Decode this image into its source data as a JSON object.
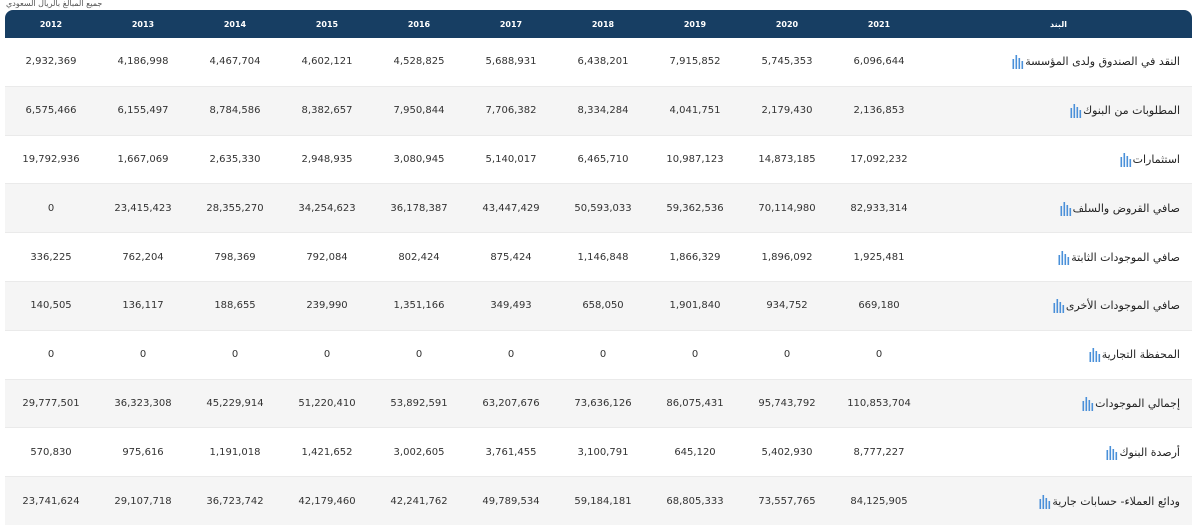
{
  "caption": "جميع المبالغ بالريال السعودي",
  "table": {
    "headers": [
      "2012",
      "2013",
      "2014",
      "2015",
      "2016",
      "2017",
      "2018",
      "2019",
      "2020",
      "2021",
      "البند"
    ],
    "rows": [
      {
        "label": "النقد في الصندوق ولدى المؤسسة",
        "values": [
          "2,932,369",
          "4,186,998",
          "4,467,704",
          "4,602,121",
          "4,528,825",
          "5,688,931",
          "6,438,201",
          "7,915,852",
          "5,745,353",
          "6,096,644"
        ]
      },
      {
        "label": "المطلوبات من البنوك",
        "values": [
          "6,575,466",
          "6,155,497",
          "8,784,586",
          "8,382,657",
          "7,950,844",
          "7,706,382",
          "8,334,284",
          "4,041,751",
          "2,179,430",
          "2,136,853"
        ]
      },
      {
        "label": "استثمارات",
        "values": [
          "19,792,936",
          "1,667,069",
          "2,635,330",
          "2,948,935",
          "3,080,945",
          "5,140,017",
          "6,465,710",
          "10,987,123",
          "14,873,185",
          "17,092,232"
        ]
      },
      {
        "label": "صافي القروض والسلف",
        "values": [
          "0",
          "23,415,423",
          "28,355,270",
          "34,254,623",
          "36,178,387",
          "43,447,429",
          "50,593,033",
          "59,362,536",
          "70,114,980",
          "82,933,314"
        ]
      },
      {
        "label": "صافي الموجودات الثابتة",
        "values": [
          "336,225",
          "762,204",
          "798,369",
          "792,084",
          "802,424",
          "875,424",
          "1,146,848",
          "1,866,329",
          "1,896,092",
          "1,925,481"
        ]
      },
      {
        "label": "صافي الموجودات الأخرى",
        "values": [
          "140,505",
          "136,117",
          "188,655",
          "239,990",
          "1,351,166",
          "349,493",
          "658,050",
          "1,901,840",
          "934,752",
          "669,180"
        ]
      },
      {
        "label": "المحفظة التجارية",
        "values": [
          "0",
          "0",
          "0",
          "0",
          "0",
          "0",
          "0",
          "0",
          "0",
          "0"
        ]
      },
      {
        "label": "إجمالي الموجودات",
        "values": [
          "29,777,501",
          "36,323,308",
          "45,229,914",
          "51,220,410",
          "53,892,591",
          "63,207,676",
          "73,636,126",
          "86,075,431",
          "95,743,792",
          "110,853,704"
        ]
      },
      {
        "label": "أرصدة البنوك",
        "values": [
          "570,830",
          "975,616",
          "1,191,018",
          "1,421,652",
          "3,002,605",
          "3,761,455",
          "3,100,791",
          "645,120",
          "5,402,930",
          "8,777,227"
        ]
      },
      {
        "label": "ودائع العملاء- حسابات جارية",
        "values": [
          "23,741,624",
          "29,107,718",
          "36,723,742",
          "42,179,460",
          "42,241,762",
          "49,789,534",
          "59,184,181",
          "68,805,333",
          "73,557,765",
          "84,125,905"
        ]
      }
    ]
  },
  "icon": "bar-chart-icon",
  "colors": {
    "header_bg": "#173e63",
    "icon_blue": "#4a90d9",
    "row_alt": "#f5f5f5"
  }
}
